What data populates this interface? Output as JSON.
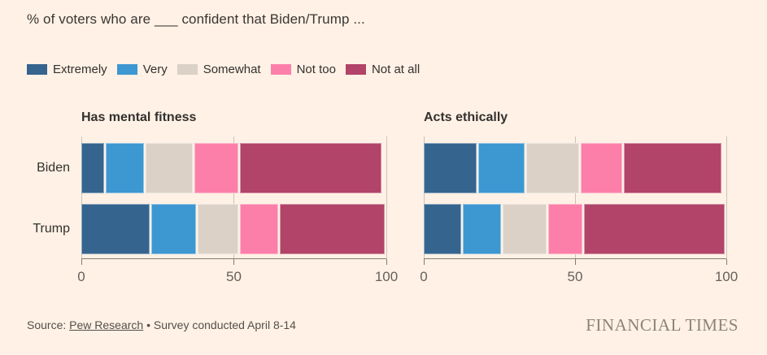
{
  "title": "% of voters who are ___ confident that Biden/Trump ...",
  "legend": {
    "items": [
      {
        "label": "Extremely",
        "color": "#35648f"
      },
      {
        "label": "Very",
        "color": "#3d97d1"
      },
      {
        "label": "Somewhat",
        "color": "#dbd1c7"
      },
      {
        "label": "Not too",
        "color": "#fc7fa9"
      },
      {
        "label": "Not at all",
        "color": "#b24369"
      }
    ]
  },
  "chart_data": [
    {
      "type": "bar",
      "stacked": true,
      "orientation": "horizontal",
      "title": "Has mental fitness",
      "categories": [
        "Biden",
        "Trump"
      ],
      "series": [
        {
          "name": "Extremely",
          "values": [
            8,
            23
          ]
        },
        {
          "name": "Very",
          "values": [
            13,
            15
          ]
        },
        {
          "name": "Somewhat",
          "values": [
            16,
            14
          ]
        },
        {
          "name": "Not too",
          "values": [
            15,
            13
          ]
        },
        {
          "name": "Not at all",
          "values": [
            47,
            35
          ]
        }
      ],
      "xlim": [
        0,
        100
      ],
      "xticks": [
        0,
        50,
        100
      ],
      "grid": true,
      "legend_position": "top"
    },
    {
      "type": "bar",
      "stacked": true,
      "orientation": "horizontal",
      "title": "Acts ethically",
      "categories": [
        "Biden",
        "Trump"
      ],
      "series": [
        {
          "name": "Extremely",
          "values": [
            18,
            13
          ]
        },
        {
          "name": "Very",
          "values": [
            16,
            13
          ]
        },
        {
          "name": "Somewhat",
          "values": [
            18,
            15
          ]
        },
        {
          "name": "Not too",
          "values": [
            14,
            12
          ]
        },
        {
          "name": "Not at all",
          "values": [
            33,
            47
          ]
        }
      ],
      "xlim": [
        0,
        100
      ],
      "xticks": [
        0,
        50,
        100
      ],
      "grid": true,
      "legend_position": "top"
    }
  ],
  "footer": {
    "source_prefix": "Source: ",
    "source_link": "Pew Research",
    "source_suffix": " • Survey conducted April 8-14",
    "logo": "FINANCIAL TIMES"
  },
  "palette": {
    "background": "#fff1e5",
    "text": "#33302e",
    "tick_text": "#66605b",
    "gridline": "#ccc3b8",
    "axis": "#847b72",
    "source_text": "#54504b",
    "logo_text": "#8d8379"
  }
}
